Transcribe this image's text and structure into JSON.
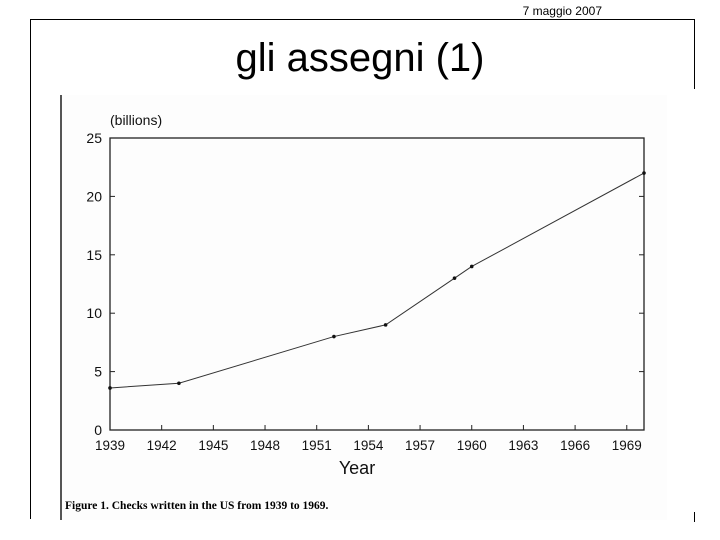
{
  "header": {
    "date": "7 maggio 2007"
  },
  "slide": {
    "title": "gli assegni (1)"
  },
  "caption": "Figure 1. Checks written in the US from 1939 to 1969.",
  "chart_data": {
    "type": "line",
    "title": "",
    "xlabel": "Year",
    "ylabel": "(billions)",
    "xlim": [
      1939,
      1970
    ],
    "ylim": [
      0,
      25
    ],
    "xticks": [
      1939,
      1942,
      1945,
      1948,
      1951,
      1954,
      1957,
      1960,
      1963,
      1966,
      1969
    ],
    "yticks": [
      0,
      5,
      10,
      15,
      20,
      25
    ],
    "grid": false,
    "series": [
      {
        "x": [
          1939,
          1943,
          1952,
          1955,
          1959,
          1960,
          1970
        ],
        "y": [
          3.6,
          4.0,
          8.0,
          9.0,
          13.0,
          14.0,
          22.0
        ]
      }
    ]
  }
}
